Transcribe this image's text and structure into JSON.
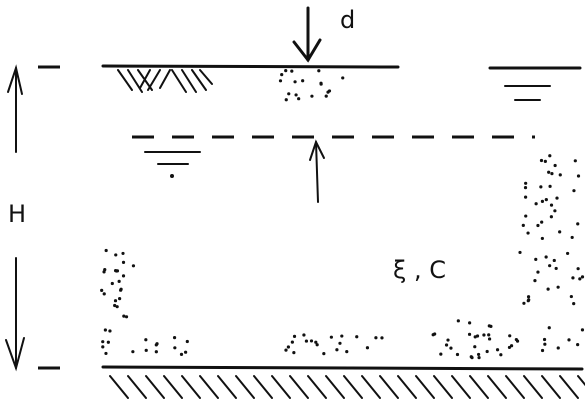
{
  "labels": {
    "depth": "d",
    "height": "H",
    "parameters": "ξ , C"
  }
}
